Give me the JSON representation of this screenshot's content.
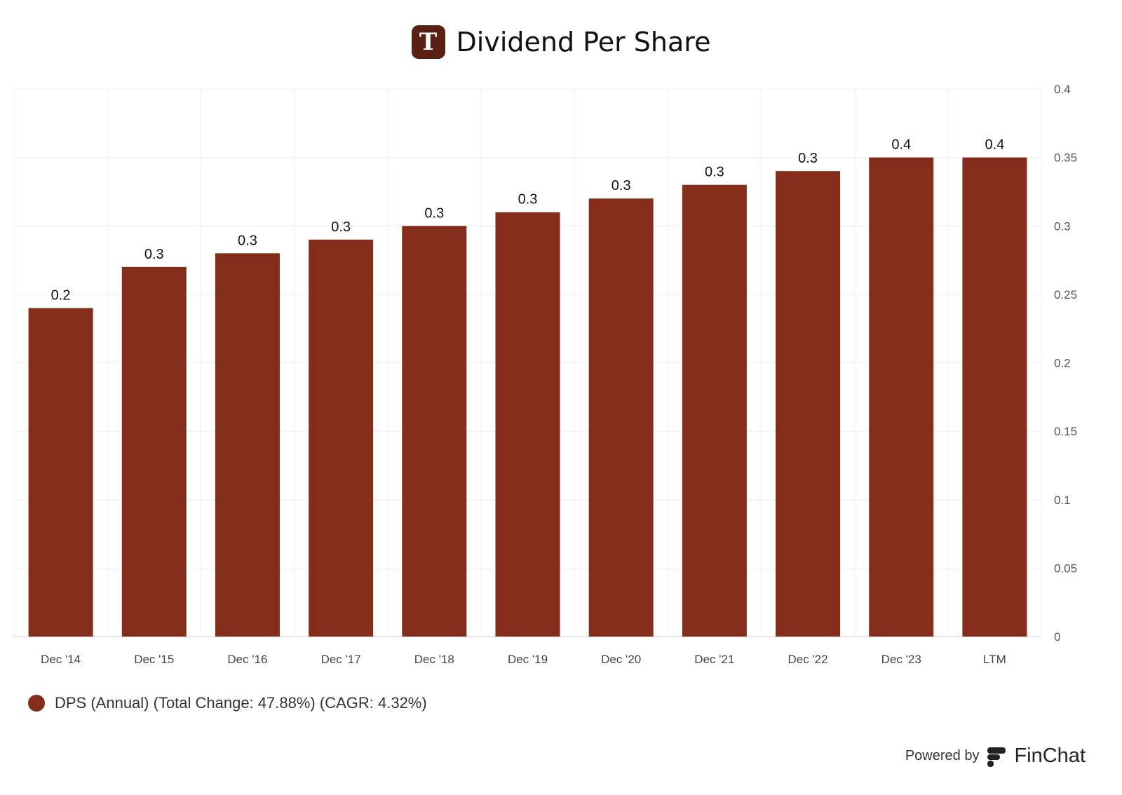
{
  "header": {
    "logo_letter": "T",
    "title": "Dividend Per Share"
  },
  "chart_data": {
    "type": "bar",
    "title": "Dividend Per Share",
    "categories": [
      "Dec '14",
      "Dec '15",
      "Dec '16",
      "Dec '17",
      "Dec '18",
      "Dec '19",
      "Dec '20",
      "Dec '21",
      "Dec '22",
      "Dec '23",
      "LTM"
    ],
    "values": [
      0.24,
      0.27,
      0.28,
      0.29,
      0.3,
      0.31,
      0.32,
      0.33,
      0.34,
      0.35,
      0.35
    ],
    "data_labels": [
      "0.2",
      "0.3",
      "0.3",
      "0.3",
      "0.3",
      "0.3",
      "0.3",
      "0.3",
      "0.3",
      "0.4",
      "0.4"
    ],
    "yticks": [
      "0",
      "0.05",
      "0.1",
      "0.15",
      "0.2",
      "0.25",
      "0.3",
      "0.35",
      "0.4"
    ],
    "ylim": [
      0,
      0.4
    ],
    "yaxis_side": "right",
    "grid": true,
    "color": "#842d1b",
    "legend": "bottom-left",
    "series": [
      {
        "name": "DPS (Annual) (Total Change: 47.88%) (CAGR: 4.32%)",
        "values": [
          0.24,
          0.27,
          0.28,
          0.29,
          0.3,
          0.31,
          0.32,
          0.33,
          0.34,
          0.35,
          0.35
        ]
      }
    ]
  },
  "footer": {
    "powered_by": "Powered by",
    "brand": "FinChat"
  }
}
